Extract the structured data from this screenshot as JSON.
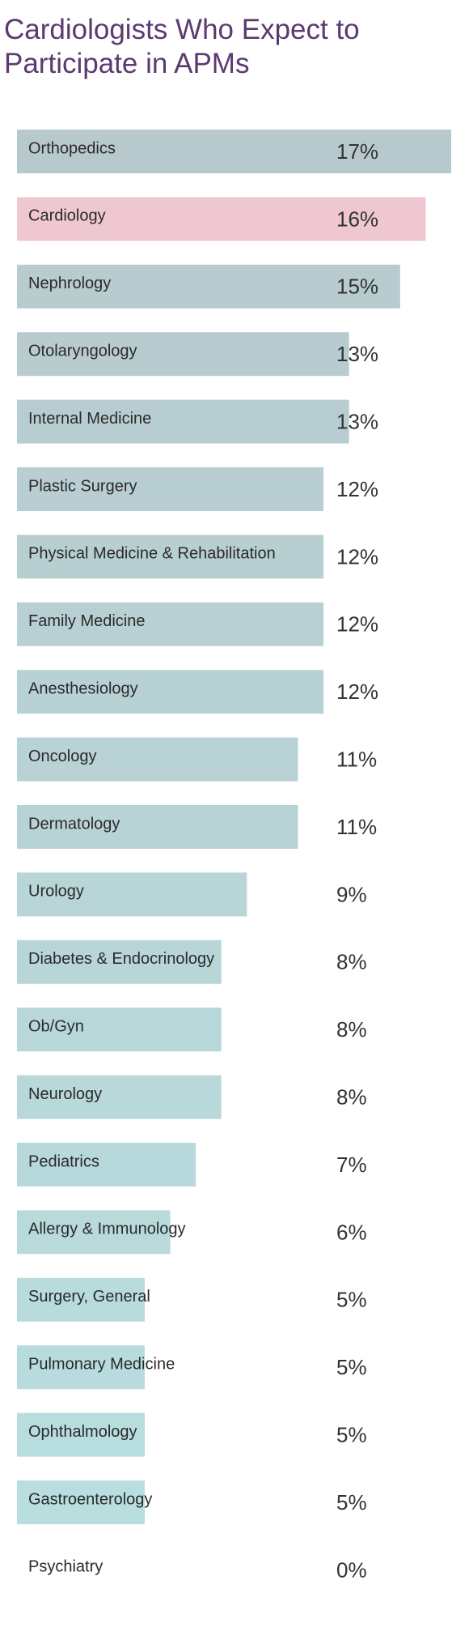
{
  "chart_data": {
    "type": "bar",
    "orientation": "horizontal",
    "title": "Cardiologists Who Expect to Participate in APMs",
    "categories": [
      "Orthopedics",
      "Cardiology",
      "Nephrology",
      "Otolaryngology",
      "Internal Medicine",
      "Plastic Surgery",
      "Physical Medicine & Rehabilitation",
      "Family Medicine",
      "Anesthesiology",
      "Oncology",
      "Dermatology",
      "Urology",
      "Diabetes & Endocrinology",
      "Ob/Gyn",
      "Neurology",
      "Pediatrics",
      "Allergy & Immunology",
      "Surgery, General",
      "Pulmonary Medicine",
      "Ophthalmology",
      "Gastroenterology",
      "Psychiatry"
    ],
    "values": [
      17,
      16,
      15,
      13,
      13,
      12,
      12,
      12,
      12,
      11,
      11,
      9,
      8,
      8,
      8,
      7,
      6,
      5,
      5,
      5,
      5,
      0
    ],
    "value_labels": [
      "17%",
      "16%",
      "15%",
      "13%",
      "13%",
      "12%",
      "12%",
      "12%",
      "12%",
      "11%",
      "11%",
      "9%",
      "8%",
      "8%",
      "8%",
      "7%",
      "6%",
      "5%",
      "5%",
      "5%",
      "5%",
      "0%"
    ],
    "highlight_category": "Cardiology",
    "xlim": [
      0,
      17
    ],
    "grid": false,
    "legend": "none",
    "colors": {
      "bar_top": "#b8c9cd",
      "bar_bottom": "#b8dfe0",
      "highlight_bar": "#efc7d1",
      "highlight_text": "#c2415b",
      "title": "#5b3a70"
    }
  }
}
